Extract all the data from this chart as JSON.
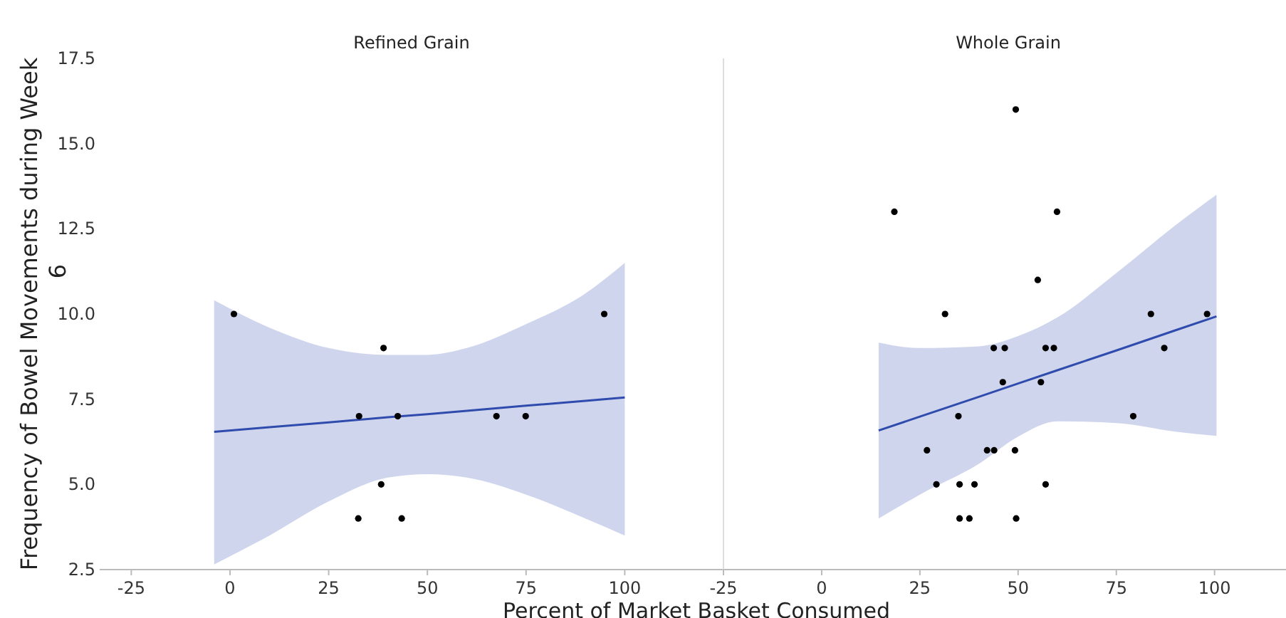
{
  "chart_data": [
    {
      "type": "scatter",
      "title": "Refined Grain",
      "xlabel": "Percent of Market Basket Consumed",
      "ylabel": "Frequency of Bowel Movements during Week",
      "annotations": [
        "6"
      ],
      "xlim": [
        -33,
        125
      ],
      "xticks": [
        -25,
        0,
        25,
        50,
        75,
        100
      ],
      "ylim": [
        2.5,
        17.5
      ],
      "yticks": [
        {
          "value": 2.5,
          "label": "2.5"
        },
        {
          "value": 5,
          "label": "5.0"
        },
        {
          "value": 7.5,
          "label": "7.5"
        },
        {
          "value": 10,
          "label": "10.0"
        },
        {
          "value": 12.5,
          "label": "12.5"
        },
        {
          "value": 15,
          "label": "15.0"
        },
        {
          "value": 17.5,
          "label": "17.5"
        }
      ],
      "series": [
        {
          "marker": "circle",
          "color": "#000000",
          "x": [
            1,
            38.9,
            32.7,
            42.5,
            67.5,
            74.9,
            94.8,
            38.3,
            32.5,
            43.5
          ],
          "values": [
            10,
            9,
            7,
            7,
            7,
            7,
            10,
            5,
            4,
            4
          ]
        },
        {
          "type": "line",
          "marker": "none",
          "color": "#2e4bad",
          "x": [
            -4,
            10,
            25,
            40,
            50,
            60,
            75,
            90,
            100
          ],
          "values": [
            6.54,
            6.68,
            6.82,
            6.97,
            7.06,
            7.16,
            7.31,
            7.45,
            7.55
          ],
          "lower": [
            2.65,
            3.5,
            4.5,
            5.2,
            5.3,
            5.2,
            4.7,
            4.0,
            3.5
          ],
          "upper": [
            10.4,
            9.6,
            9.0,
            8.8,
            8.8,
            9.0,
            9.7,
            10.6,
            11.5
          ]
        }
      ]
    },
    {
      "type": "scatter",
      "title": "Whole Grain",
      "xlim": [
        -25,
        120
      ],
      "xticks": [
        -25,
        0,
        25,
        50,
        75,
        100
      ],
      "ylim": [
        2.5,
        17.5
      ],
      "tick_labels": "x",
      "series": [
        {
          "marker": "circle",
          "color": "#000000",
          "x": [
            49.4,
            18.5,
            59.9,
            55,
            31.4,
            83.8,
            98.1,
            43.8,
            46.6,
            57,
            59.1,
            87.2,
            46.1,
            55.8,
            34.8,
            79.3,
            26.8,
            42.1,
            43.9,
            49.2,
            29.2,
            35.1,
            38.9,
            57,
            35.1,
            37.6,
            49.5
          ],
          "values": [
            16,
            13,
            13,
            11,
            10,
            10,
            10,
            9,
            9,
            9,
            9,
            9,
            8,
            8,
            7,
            7,
            6,
            6,
            6,
            6,
            5,
            5,
            5,
            5,
            4,
            4,
            4
          ]
        },
        {
          "type": "line",
          "marker": "none",
          "color": "#2e4bad",
          "x": [
            14.5,
            25,
            40,
            50,
            60,
            75,
            90,
            100.5
          ],
          "values": [
            6.58,
            6.99,
            7.57,
            7.96,
            8.35,
            8.93,
            9.52,
            9.93
          ],
          "lower": [
            4.0,
            4.7,
            5.6,
            6.4,
            6.85,
            6.8,
            6.55,
            6.42
          ],
          "upper": [
            9.16,
            9.0,
            9.05,
            9.35,
            9.9,
            11.2,
            12.6,
            13.5
          ]
        }
      ]
    }
  ]
}
